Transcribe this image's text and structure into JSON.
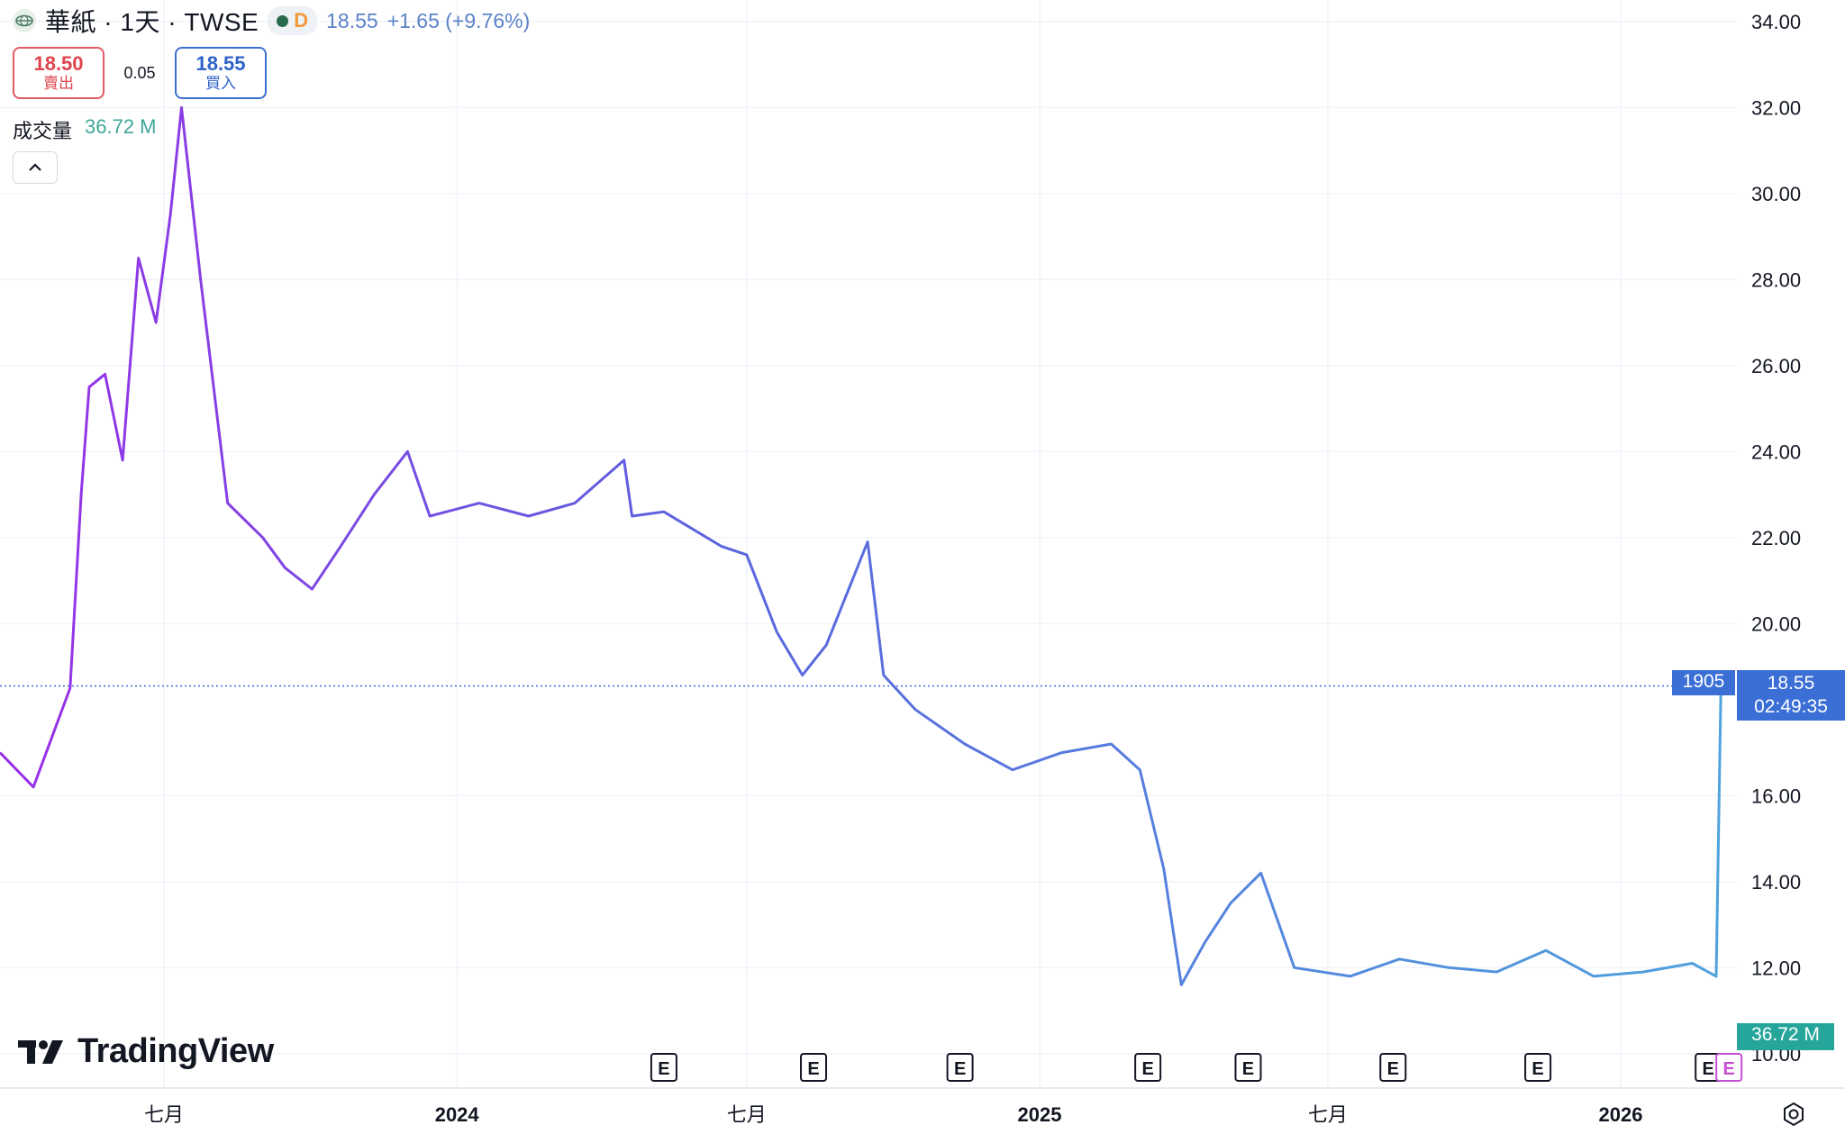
{
  "header": {
    "title": "華紙 · 1天 · TWSE",
    "interval_letter": "D",
    "last_price": "18.55",
    "change": "+1.65 (+9.76%)"
  },
  "trade": {
    "sell_price": "18.50",
    "sell_label": "賣出",
    "spread": "0.05",
    "buy_price": "18.55",
    "buy_label": "買入"
  },
  "volume_legend": {
    "label": "成交量",
    "value": "36.72 M"
  },
  "price_tag": {
    "countdown_label": "1905",
    "price": "18.55",
    "timer": "02:49:35"
  },
  "volume_tag": "36.72 M",
  "logo_text": "TradingView",
  "earnings_marker": "E",
  "colors": {
    "line_start": "#9a2fe8",
    "line_mid": "#5b63de",
    "line_end": "#4fa3dd",
    "last_price_tag": "#3b6fd6",
    "volume_tag": "#26a69a",
    "sell": "#e0444e",
    "buy": "#2f62c8"
  },
  "chart_data": {
    "type": "line",
    "title": "華紙 · 1天 · TWSE",
    "y_ticks": [
      "34.00",
      "32.00",
      "30.00",
      "28.00",
      "26.00",
      "24.00",
      "22.00",
      "20.00",
      "16.00",
      "14.00",
      "12.00",
      "10.00"
    ],
    "ylim": [
      9.2,
      34.5
    ],
    "x_ticks": [
      "七月",
      "2024",
      "七月",
      "2025",
      "七月",
      "2026"
    ],
    "xlim": [
      "2023-03-20",
      "2026-03-15"
    ],
    "earnings_dates": [
      "2024-05-10",
      "2024-08-12",
      "2024-11-12",
      "2025-03-10",
      "2025-05-12",
      "2025-08-11",
      "2025-11-10",
      "2026-02-25",
      "2026-03-10"
    ],
    "grid": true,
    "series": [
      {
        "x": [
          "2023-03-20",
          "2023-04-10",
          "2023-05-03",
          "2023-05-10",
          "2023-05-15",
          "2023-05-25",
          "2023-06-05",
          "2023-06-15",
          "2023-06-26",
          "2023-07-05",
          "2023-07-12",
          "2023-07-24",
          "2023-08-10",
          "2023-09-01",
          "2023-09-15",
          "2023-10-02",
          "2023-10-20",
          "2023-11-10",
          "2023-12-01",
          "2023-12-15",
          "2024-01-15",
          "2024-02-15",
          "2024-03-15",
          "2024-04-15",
          "2024-04-20",
          "2024-05-10",
          "2024-06-15",
          "2024-07-01",
          "2024-07-20",
          "2024-08-05",
          "2024-08-20",
          "2024-09-15",
          "2024-09-25",
          "2024-10-15",
          "2024-11-15",
          "2024-12-15",
          "2025-01-15",
          "2025-02-15",
          "2025-03-05",
          "2025-03-20",
          "2025-03-31",
          "2025-04-15",
          "2025-05-01",
          "2025-05-20",
          "2025-06-10",
          "2025-07-15",
          "2025-08-15",
          "2025-09-15",
          "2025-10-15",
          "2025-11-15",
          "2025-12-15",
          "2026-01-15",
          "2026-02-15",
          "2026-03-02",
          "2026-03-05"
        ],
        "y": [
          17.0,
          16.2,
          18.5,
          23.0,
          25.5,
          25.8,
          23.8,
          28.5,
          27.0,
          29.5,
          32.0,
          28.0,
          22.8,
          22.0,
          21.3,
          20.8,
          21.8,
          23.0,
          24.0,
          22.5,
          22.8,
          22.5,
          22.8,
          23.8,
          22.5,
          22.6,
          21.8,
          21.6,
          19.8,
          18.8,
          19.5,
          21.9,
          18.8,
          18.0,
          17.2,
          16.6,
          17.0,
          17.2,
          16.6,
          14.3,
          11.6,
          12.6,
          13.5,
          14.2,
          12.0,
          11.8,
          12.2,
          12.0,
          11.9,
          12.4,
          11.8,
          11.9,
          12.1,
          11.8,
          18.55
        ]
      }
    ],
    "last_value": 18.55
  }
}
